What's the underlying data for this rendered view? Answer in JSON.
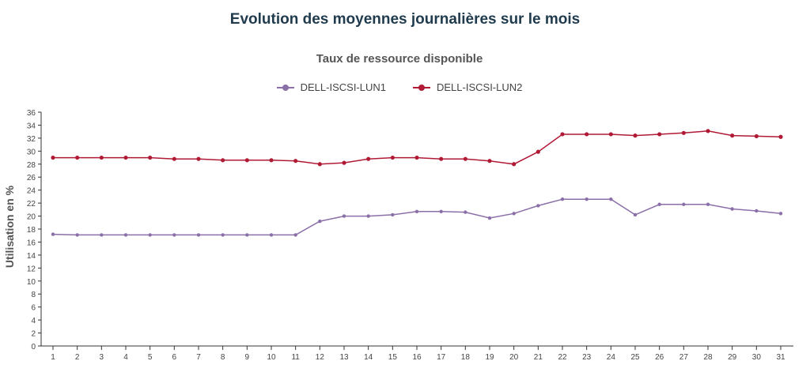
{
  "page": {
    "title": "Evolution des moyennes journalières sur le mois"
  },
  "chart_data": {
    "type": "line",
    "title": "Taux de ressource disponible",
    "xlabel": "",
    "ylabel": "Utilisation en %",
    "x": [
      "1",
      "2",
      "3",
      "4",
      "5",
      "6",
      "7",
      "8",
      "9",
      "10",
      "11",
      "12",
      "13",
      "14",
      "15",
      "16",
      "17",
      "18",
      "19",
      "20",
      "21",
      "22",
      "23",
      "24",
      "25",
      "26",
      "27",
      "28",
      "29",
      "30",
      "31"
    ],
    "yticks": [
      0,
      2,
      4,
      6,
      8,
      10,
      12,
      14,
      16,
      18,
      20,
      22,
      24,
      26,
      28,
      30,
      32,
      34,
      36
    ],
    "ylim": [
      0,
      36
    ],
    "grid": false,
    "legend_position": "top-center",
    "series": [
      {
        "name": "DELL-ISCSI-LUN1",
        "color": "#8a6fa8",
        "values": [
          17.2,
          17.1,
          17.1,
          17.1,
          17.1,
          17.1,
          17.1,
          17.1,
          17.1,
          17.1,
          17.1,
          19.2,
          20.0,
          20.0,
          20.2,
          20.7,
          20.7,
          20.6,
          19.7,
          20.4,
          21.6,
          22.6,
          22.6,
          22.6,
          20.2,
          21.8,
          21.8,
          21.8,
          21.1,
          20.8,
          20.4
        ]
      },
      {
        "name": "DELL-ISCSI-LUN2",
        "color": "#b01a35",
        "values": [
          29.0,
          29.0,
          29.0,
          29.0,
          29.0,
          28.8,
          28.8,
          28.6,
          28.6,
          28.6,
          28.5,
          28.0,
          28.2,
          28.8,
          29.0,
          29.0,
          28.8,
          28.8,
          28.5,
          28.0,
          29.9,
          32.6,
          32.6,
          32.6,
          32.4,
          32.6,
          32.8,
          33.1,
          32.4,
          32.3,
          32.2
        ]
      }
    ]
  }
}
